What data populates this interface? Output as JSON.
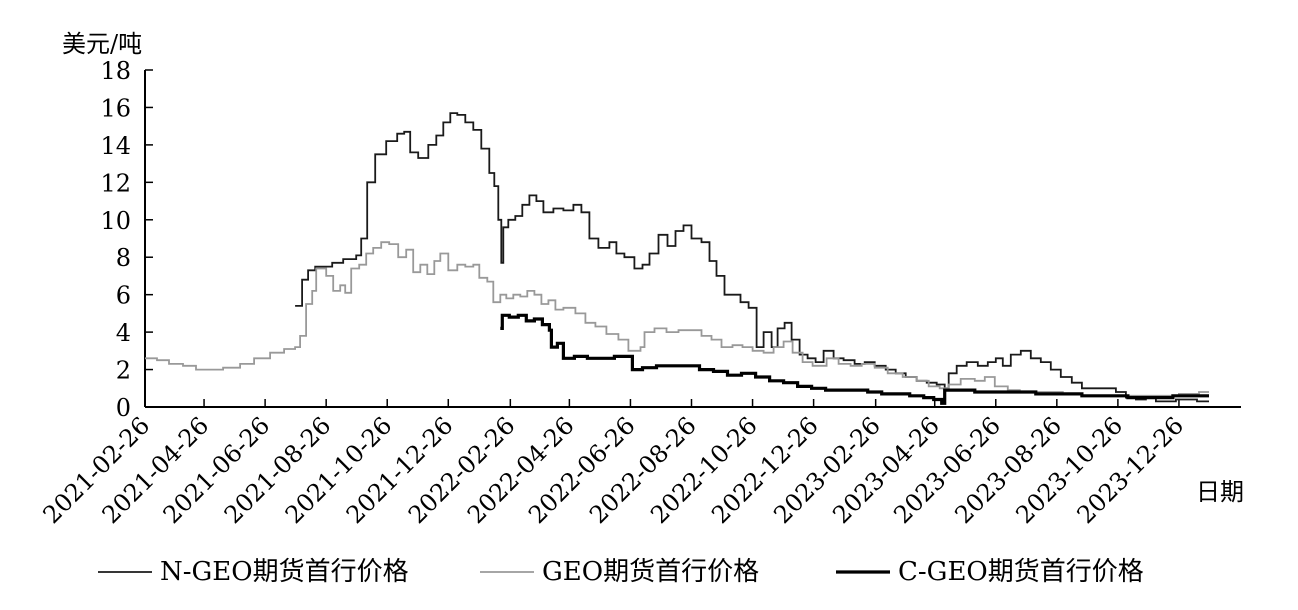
{
  "chart_data": {
    "type": "line",
    "title": "",
    "ylabel": "美元/吨",
    "xlabel": "日期",
    "ylim": [
      0,
      18
    ],
    "yticks": [
      "0",
      "2",
      "4",
      "6",
      "8",
      "10",
      "12",
      "14",
      "16",
      "18"
    ],
    "xlim": [
      "2021-02-26",
      "2024-02-26"
    ],
    "xticks": [
      "2021-02-26",
      "2021-04-26",
      "2021-06-26",
      "2021-08-26",
      "2021-10-26",
      "2021-12-26",
      "2022-02-26",
      "2022-04-26",
      "2022-06-26",
      "2022-08-26",
      "2022-10-26",
      "2022-12-26",
      "2023-02-26",
      "2023-04-26",
      "2023-06-26",
      "2023-08-26",
      "2023-10-26",
      "2023-12-26"
    ],
    "grid": false,
    "legend_position": "bottom",
    "series": [
      {
        "name": "N-GEO期货首行价格",
        "color": "#1a1a1a",
        "width": 1.8,
        "points": [
          [
            "2021-07-26",
            5.4
          ],
          [
            "2021-08-02",
            6.8
          ],
          [
            "2021-08-08",
            7.3
          ],
          [
            "2021-08-15",
            7.5
          ],
          [
            "2021-08-22",
            7.5
          ],
          [
            "2021-09-01",
            7.7
          ],
          [
            "2021-09-12",
            7.9
          ],
          [
            "2021-09-25",
            8.1
          ],
          [
            "2021-09-30",
            9.0
          ],
          [
            "2021-10-06",
            12.0
          ],
          [
            "2021-10-14",
            13.5
          ],
          [
            "2021-10-25",
            14.2
          ],
          [
            "2021-11-05",
            14.6
          ],
          [
            "2021-11-12",
            14.7
          ],
          [
            "2021-11-18",
            13.6
          ],
          [
            "2021-11-26",
            13.3
          ],
          [
            "2021-12-06",
            14.0
          ],
          [
            "2021-12-14",
            14.5
          ],
          [
            "2021-12-21",
            15.2
          ],
          [
            "2021-12-28",
            15.7
          ],
          [
            "2022-01-04",
            15.6
          ],
          [
            "2022-01-12",
            15.2
          ],
          [
            "2022-01-20",
            14.8
          ],
          [
            "2022-01-28",
            13.8
          ],
          [
            "2022-02-05",
            12.5
          ],
          [
            "2022-02-10",
            11.8
          ],
          [
            "2022-02-14",
            10.0
          ],
          [
            "2022-02-17",
            7.7
          ],
          [
            "2022-02-19",
            9.6
          ],
          [
            "2022-02-24",
            10.0
          ],
          [
            "2022-03-03",
            10.2
          ],
          [
            "2022-03-10",
            10.8
          ],
          [
            "2022-03-17",
            11.3
          ],
          [
            "2022-03-24",
            11.0
          ],
          [
            "2022-03-31",
            10.4
          ],
          [
            "2022-04-10",
            10.6
          ],
          [
            "2022-04-20",
            10.5
          ],
          [
            "2022-04-30",
            10.8
          ],
          [
            "2022-05-08",
            10.4
          ],
          [
            "2022-05-16",
            9.0
          ],
          [
            "2022-05-25",
            8.5
          ],
          [
            "2022-06-05",
            8.8
          ],
          [
            "2022-06-12",
            8.2
          ],
          [
            "2022-06-20",
            8.0
          ],
          [
            "2022-06-30",
            7.4
          ],
          [
            "2022-07-08",
            7.6
          ],
          [
            "2022-07-15",
            8.2
          ],
          [
            "2022-07-24",
            9.2
          ],
          [
            "2022-08-02",
            8.6
          ],
          [
            "2022-08-10",
            9.4
          ],
          [
            "2022-08-18",
            9.7
          ],
          [
            "2022-08-26",
            9.0
          ],
          [
            "2022-09-05",
            8.8
          ],
          [
            "2022-09-13",
            7.8
          ],
          [
            "2022-09-20",
            7.0
          ],
          [
            "2022-09-28",
            6.0
          ],
          [
            "2022-10-06",
            6.0
          ],
          [
            "2022-10-14",
            5.6
          ],
          [
            "2022-10-22",
            5.3
          ],
          [
            "2022-10-28",
            5.3
          ],
          [
            "2022-10-30",
            3.2
          ],
          [
            "2022-11-06",
            4.0
          ],
          [
            "2022-11-14",
            3.2
          ],
          [
            "2022-11-20",
            4.2
          ],
          [
            "2022-11-27",
            4.5
          ],
          [
            "2022-12-04",
            3.6
          ],
          [
            "2022-12-12",
            2.8
          ],
          [
            "2022-12-20",
            2.6
          ],
          [
            "2022-12-28",
            2.4
          ],
          [
            "2023-01-05",
            3.0
          ],
          [
            "2023-01-15",
            2.6
          ],
          [
            "2023-01-25",
            2.5
          ],
          [
            "2023-02-05",
            2.3
          ],
          [
            "2023-02-15",
            2.4
          ],
          [
            "2023-02-25",
            2.2
          ],
          [
            "2023-03-08",
            2.0
          ],
          [
            "2023-03-18",
            1.8
          ],
          [
            "2023-03-28",
            1.6
          ],
          [
            "2023-04-08",
            1.4
          ],
          [
            "2023-04-18",
            1.3
          ],
          [
            "2023-04-28",
            1.2
          ],
          [
            "2023-05-06",
            1.0
          ],
          [
            "2023-05-10",
            1.8
          ],
          [
            "2023-05-18",
            2.2
          ],
          [
            "2023-05-28",
            2.4
          ],
          [
            "2023-06-08",
            2.2
          ],
          [
            "2023-06-18",
            2.4
          ],
          [
            "2023-06-26",
            2.6
          ],
          [
            "2023-07-03",
            2.2
          ],
          [
            "2023-07-11",
            2.8
          ],
          [
            "2023-07-21",
            3.0
          ],
          [
            "2023-07-31",
            2.6
          ],
          [
            "2023-08-10",
            2.4
          ],
          [
            "2023-08-20",
            2.0
          ],
          [
            "2023-08-30",
            1.6
          ],
          [
            "2023-09-10",
            1.3
          ],
          [
            "2023-09-20",
            1.0
          ],
          [
            "2023-10-02",
            1.0
          ],
          [
            "2023-10-14",
            1.0
          ],
          [
            "2023-10-24",
            0.8
          ],
          [
            "2023-11-03",
            0.5
          ],
          [
            "2023-11-13",
            0.4
          ],
          [
            "2023-11-23",
            0.5
          ],
          [
            "2023-12-03",
            0.3
          ],
          [
            "2023-12-13",
            0.3
          ],
          [
            "2023-12-23",
            0.4
          ],
          [
            "2024-01-03",
            0.4
          ],
          [
            "2024-01-13",
            0.3
          ],
          [
            "2024-01-25",
            0.3
          ]
        ]
      },
      {
        "name": "GEO期货首行价格",
        "color": "#999999",
        "width": 1.8,
        "points": [
          [
            "2021-02-26",
            2.6
          ],
          [
            "2021-03-10",
            2.5
          ],
          [
            "2021-03-22",
            2.3
          ],
          [
            "2021-04-05",
            2.2
          ],
          [
            "2021-04-18",
            2.0
          ],
          [
            "2021-04-30",
            2.0
          ],
          [
            "2021-05-15",
            2.1
          ],
          [
            "2021-06-01",
            2.3
          ],
          [
            "2021-06-15",
            2.6
          ],
          [
            "2021-07-01",
            2.9
          ],
          [
            "2021-07-15",
            3.1
          ],
          [
            "2021-07-26",
            3.2
          ],
          [
            "2021-07-31",
            3.8
          ],
          [
            "2021-08-06",
            5.5
          ],
          [
            "2021-08-12",
            6.2
          ],
          [
            "2021-08-16",
            7.4
          ],
          [
            "2021-08-26",
            7.0
          ],
          [
            "2021-09-02",
            6.2
          ],
          [
            "2021-09-09",
            6.5
          ],
          [
            "2021-09-14",
            6.1
          ],
          [
            "2021-09-20",
            7.4
          ],
          [
            "2021-09-28",
            7.6
          ],
          [
            "2021-10-05",
            8.2
          ],
          [
            "2021-10-12",
            8.5
          ],
          [
            "2021-10-20",
            8.8
          ],
          [
            "2021-10-28",
            8.7
          ],
          [
            "2021-11-06",
            8.0
          ],
          [
            "2021-11-14",
            8.4
          ],
          [
            "2021-11-21",
            7.2
          ],
          [
            "2021-11-28",
            7.6
          ],
          [
            "2021-12-05",
            7.1
          ],
          [
            "2021-12-12",
            7.8
          ],
          [
            "2021-12-18",
            8.2
          ],
          [
            "2021-12-26",
            7.3
          ],
          [
            "2022-01-04",
            7.6
          ],
          [
            "2022-01-12",
            7.5
          ],
          [
            "2022-01-20",
            7.6
          ],
          [
            "2022-01-26",
            6.9
          ],
          [
            "2022-02-03",
            6.7
          ],
          [
            "2022-02-09",
            5.6
          ],
          [
            "2022-02-16",
            6.0
          ],
          [
            "2022-02-22",
            5.8
          ],
          [
            "2022-03-01",
            6.0
          ],
          [
            "2022-03-08",
            5.9
          ],
          [
            "2022-03-15",
            6.2
          ],
          [
            "2022-03-22",
            6.0
          ],
          [
            "2022-03-29",
            5.5
          ],
          [
            "2022-04-05",
            5.7
          ],
          [
            "2022-04-12",
            5.2
          ],
          [
            "2022-04-20",
            5.3
          ],
          [
            "2022-05-02",
            5.0
          ],
          [
            "2022-05-12",
            4.5
          ],
          [
            "2022-05-22",
            4.3
          ],
          [
            "2022-06-02",
            3.9
          ],
          [
            "2022-06-14",
            3.6
          ],
          [
            "2022-06-24",
            3.0
          ],
          [
            "2022-07-01",
            3.0
          ],
          [
            "2022-07-06",
            3.2
          ],
          [
            "2022-07-10",
            4.0
          ],
          [
            "2022-07-20",
            4.2
          ],
          [
            "2022-08-01",
            4.0
          ],
          [
            "2022-08-13",
            4.1
          ],
          [
            "2022-08-24",
            4.1
          ],
          [
            "2022-09-05",
            3.8
          ],
          [
            "2022-09-15",
            3.6
          ],
          [
            "2022-09-25",
            3.2
          ],
          [
            "2022-10-06",
            3.3
          ],
          [
            "2022-10-16",
            3.2
          ],
          [
            "2022-10-26",
            3.0
          ],
          [
            "2022-11-06",
            2.9
          ],
          [
            "2022-11-16",
            3.2
          ],
          [
            "2022-11-26",
            3.5
          ],
          [
            "2022-12-05",
            2.9
          ],
          [
            "2022-12-15",
            2.4
          ],
          [
            "2022-12-25",
            2.2
          ],
          [
            "2023-01-08",
            2.6
          ],
          [
            "2023-01-20",
            2.3
          ],
          [
            "2023-02-01",
            2.2
          ],
          [
            "2023-02-12",
            2.3
          ],
          [
            "2023-02-25",
            2.1
          ],
          [
            "2023-03-10",
            1.8
          ],
          [
            "2023-03-25",
            1.6
          ],
          [
            "2023-04-08",
            1.4
          ],
          [
            "2023-04-20",
            1.1
          ],
          [
            "2023-05-01",
            1.0
          ],
          [
            "2023-05-10",
            1.2
          ],
          [
            "2023-05-22",
            1.5
          ],
          [
            "2023-06-05",
            1.4
          ],
          [
            "2023-06-15",
            1.6
          ],
          [
            "2023-06-25",
            1.1
          ],
          [
            "2023-07-08",
            0.9
          ],
          [
            "2023-07-20",
            0.8
          ],
          [
            "2023-08-01",
            0.8
          ],
          [
            "2023-08-15",
            0.8
          ],
          [
            "2023-09-01",
            0.7
          ],
          [
            "2023-09-20",
            0.6
          ],
          [
            "2023-10-08",
            0.6
          ],
          [
            "2023-10-26",
            0.6
          ],
          [
            "2023-11-15",
            0.6
          ],
          [
            "2023-12-05",
            0.6
          ],
          [
            "2023-12-26",
            0.7
          ],
          [
            "2024-01-15",
            0.8
          ],
          [
            "2024-01-25",
            0.8
          ]
        ]
      },
      {
        "name": "C-GEO期货首行价格",
        "color": "#000000",
        "width": 3.2,
        "points": [
          [
            "2022-02-16",
            4.2
          ],
          [
            "2022-02-18",
            4.9
          ],
          [
            "2022-02-25",
            4.8
          ],
          [
            "2022-03-06",
            4.9
          ],
          [
            "2022-03-14",
            4.6
          ],
          [
            "2022-03-22",
            4.7
          ],
          [
            "2022-03-30",
            4.4
          ],
          [
            "2022-04-06",
            4.1
          ],
          [
            "2022-04-08",
            3.2
          ],
          [
            "2022-04-14",
            3.4
          ],
          [
            "2022-04-20",
            2.6
          ],
          [
            "2022-05-01",
            2.7
          ],
          [
            "2022-05-14",
            2.6
          ],
          [
            "2022-05-28",
            2.6
          ],
          [
            "2022-06-10",
            2.7
          ],
          [
            "2022-06-24",
            2.7
          ],
          [
            "2022-06-28",
            2.0
          ],
          [
            "2022-07-08",
            2.1
          ],
          [
            "2022-07-22",
            2.2
          ],
          [
            "2022-08-06",
            2.2
          ],
          [
            "2022-08-20",
            2.2
          ],
          [
            "2022-09-03",
            2.0
          ],
          [
            "2022-09-17",
            1.9
          ],
          [
            "2022-10-01",
            1.7
          ],
          [
            "2022-10-15",
            1.8
          ],
          [
            "2022-10-29",
            1.6
          ],
          [
            "2022-11-12",
            1.4
          ],
          [
            "2022-11-26",
            1.3
          ],
          [
            "2022-12-10",
            1.1
          ],
          [
            "2022-12-24",
            1.0
          ],
          [
            "2023-01-07",
            0.9
          ],
          [
            "2023-01-21",
            0.9
          ],
          [
            "2023-02-04",
            0.9
          ],
          [
            "2023-02-18",
            0.8
          ],
          [
            "2023-03-04",
            0.7
          ],
          [
            "2023-03-18",
            0.7
          ],
          [
            "2023-04-01",
            0.6
          ],
          [
            "2023-04-15",
            0.5
          ],
          [
            "2023-04-25",
            0.4
          ],
          [
            "2023-05-03",
            0.2
          ],
          [
            "2023-05-06",
            0.9
          ],
          [
            "2023-05-20",
            0.9
          ],
          [
            "2023-06-05",
            0.8
          ],
          [
            "2023-06-20",
            0.8
          ],
          [
            "2023-07-05",
            0.8
          ],
          [
            "2023-07-20",
            0.8
          ],
          [
            "2023-08-05",
            0.7
          ],
          [
            "2023-08-20",
            0.7
          ],
          [
            "2023-09-05",
            0.7
          ],
          [
            "2023-09-20",
            0.6
          ],
          [
            "2023-10-05",
            0.6
          ],
          [
            "2023-10-20",
            0.6
          ],
          [
            "2023-11-05",
            0.5
          ],
          [
            "2023-11-20",
            0.5
          ],
          [
            "2023-12-05",
            0.5
          ],
          [
            "2023-12-20",
            0.6
          ],
          [
            "2024-01-10",
            0.6
          ],
          [
            "2024-01-25",
            0.6
          ]
        ]
      }
    ]
  }
}
